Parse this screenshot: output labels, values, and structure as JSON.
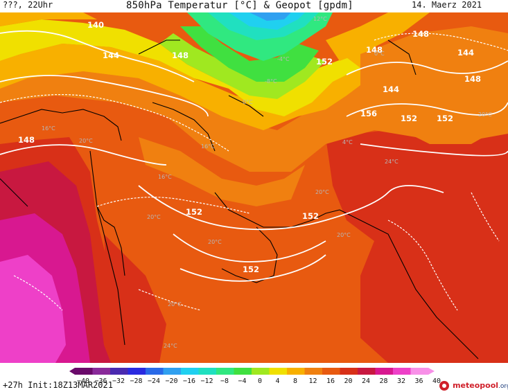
{
  "header": {
    "left_text": "???, 22Uhr",
    "title": "850hPa Temperatur [°C] & Geopot [gpdm]",
    "date": "14. Maerz 2021"
  },
  "colors": {
    "c_m40": "#9a9a9a",
    "c_m36": "#6a0a6a",
    "c_m32": "#8a2a9a",
    "c_m28": "#4a2ab0",
    "c_m24": "#2a2ae0",
    "c_m20": "#2a6ae8",
    "c_m16": "#30a0f0",
    "c_m12": "#20d0f0",
    "c_m8": "#20e0c0",
    "c_m4": "#30e880",
    "c_0": "#40e040",
    "c_4": "#a0e820",
    "c_8": "#f0e000",
    "c_12": "#f8b000",
    "c_16": "#f08010",
    "c_20": "#e85a10",
    "c_24": "#d83018",
    "c_28": "#c81840",
    "c_32": "#d81890",
    "c_36": "#ee40c8",
    "c_40": "#f890e8",
    "contour_line": "#ffffff",
    "coast_line": "#000000"
  },
  "colorbar": {
    "labels": [
      "−40",
      "−36",
      "−32",
      "−28",
      "−24",
      "−20",
      "−16",
      "−12",
      "−8",
      "−4",
      "0",
      "4",
      "8",
      "12",
      "16",
      "20",
      "24",
      "28",
      "32",
      "36",
      "40"
    ]
  },
  "geopotential_labels": [
    "140",
    "144",
    "148",
    "148",
    "152",
    "144",
    "148",
    "152",
    "148",
    "148",
    "144",
    "156",
    "152",
    "152",
    "152",
    "152"
  ],
  "temperature_labels": [
    "-4°C",
    "0°C",
    "-8°C",
    "12°C",
    "16°C",
    "16°C",
    "16°C",
    "20°C",
    "20°C",
    "20°C",
    "20°C",
    "24°C",
    "20°C",
    "20°C",
    "24°C",
    "20°C",
    "0°C",
    "4°C"
  ],
  "footer": {
    "run_info": "+27h Init:18Z13MAR2021",
    "logo_main": "meteopool",
    "logo_tld": ".org"
  }
}
